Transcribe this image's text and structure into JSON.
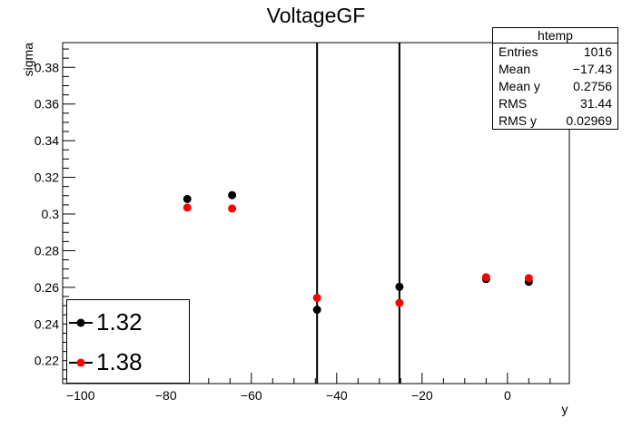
{
  "chart_data": {
    "type": "scatter",
    "title": "VoltageGF",
    "xlabel": "y",
    "ylabel": "sigma",
    "xlim": [
      -104.2,
      14.5
    ],
    "ylim": [
      0.2075,
      0.3935
    ],
    "x_ticks": [
      -100,
      -80,
      -60,
      -40,
      -20,
      0
    ],
    "x_tick_labels": [
      "−100",
      "−80",
      "−60",
      "−40",
      "−20",
      "0"
    ],
    "y_ticks": [
      0.22,
      0.24,
      0.26,
      0.28,
      0.3,
      0.32,
      0.34,
      0.36,
      0.38
    ],
    "y_tick_labels": [
      "0.22",
      "0.24",
      "0.26",
      "0.28",
      "0.3",
      "0.32",
      "0.34",
      "0.36",
      "0.38"
    ],
    "vertical_lines": [
      -44.6,
      -25.3
    ],
    "series": [
      {
        "name": "1.32",
        "color": "#000000",
        "x": [
          -75,
          -64.5,
          -44.6,
          -25.3,
          -5,
          5
        ],
        "y": [
          0.3082,
          0.3103,
          0.2478,
          0.2603,
          0.2645,
          0.263
        ],
        "err": [
          0.0022,
          0.0011,
          0.0011,
          0.0011,
          0.0011,
          0.0011
        ]
      },
      {
        "name": "1.38",
        "color": "#ff0000",
        "x": [
          -75,
          -64.5,
          -44.6,
          -25.3,
          -5,
          5
        ],
        "y": [
          0.3035,
          0.303,
          0.2543,
          0.2515,
          0.2655,
          0.265
        ],
        "err": [
          0.0008,
          0.0008,
          0.0008,
          0.0008,
          0.0008,
          0.0008
        ]
      }
    ]
  },
  "stats": {
    "title": "htemp",
    "rows": [
      {
        "label": "Entries",
        "value": "1016"
      },
      {
        "label": "Mean",
        "value": "−17.43"
      },
      {
        "label": "Mean y",
        "value": "0.2756"
      },
      {
        "label": "RMS",
        "value": "31.44"
      },
      {
        "label": "RMS y",
        "value": "0.02969"
      }
    ]
  }
}
